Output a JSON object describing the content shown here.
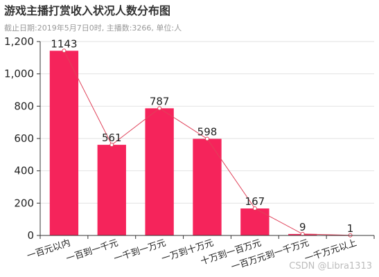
{
  "chart_data": {
    "type": "bar",
    "title": "游戏主播打赏收入状况人数分布图",
    "subtitle": "截止日期:2019年5月7日0时, 主播数:3266, 单位:人",
    "categories": [
      "一百元以内",
      "一百到一千元",
      "一千到一万元",
      "一万到十万元",
      "十万到一百万元",
      "一百万元到一千万元",
      "一千万元以上"
    ],
    "values": [
      1143,
      561,
      787,
      598,
      167,
      9,
      1
    ],
    "overlay_line": true,
    "ylim": [
      0,
      1200
    ],
    "yticks": [
      0,
      200,
      400,
      600,
      800,
      1000,
      1200
    ],
    "ytick_labels": [
      "0",
      "200",
      "400",
      "600",
      "800",
      "1,000",
      "1,200"
    ],
    "grid": true,
    "colors": {
      "bar": "#f5245b",
      "line": "#e0425a"
    }
  },
  "watermark": "CSDN @Libra1313"
}
